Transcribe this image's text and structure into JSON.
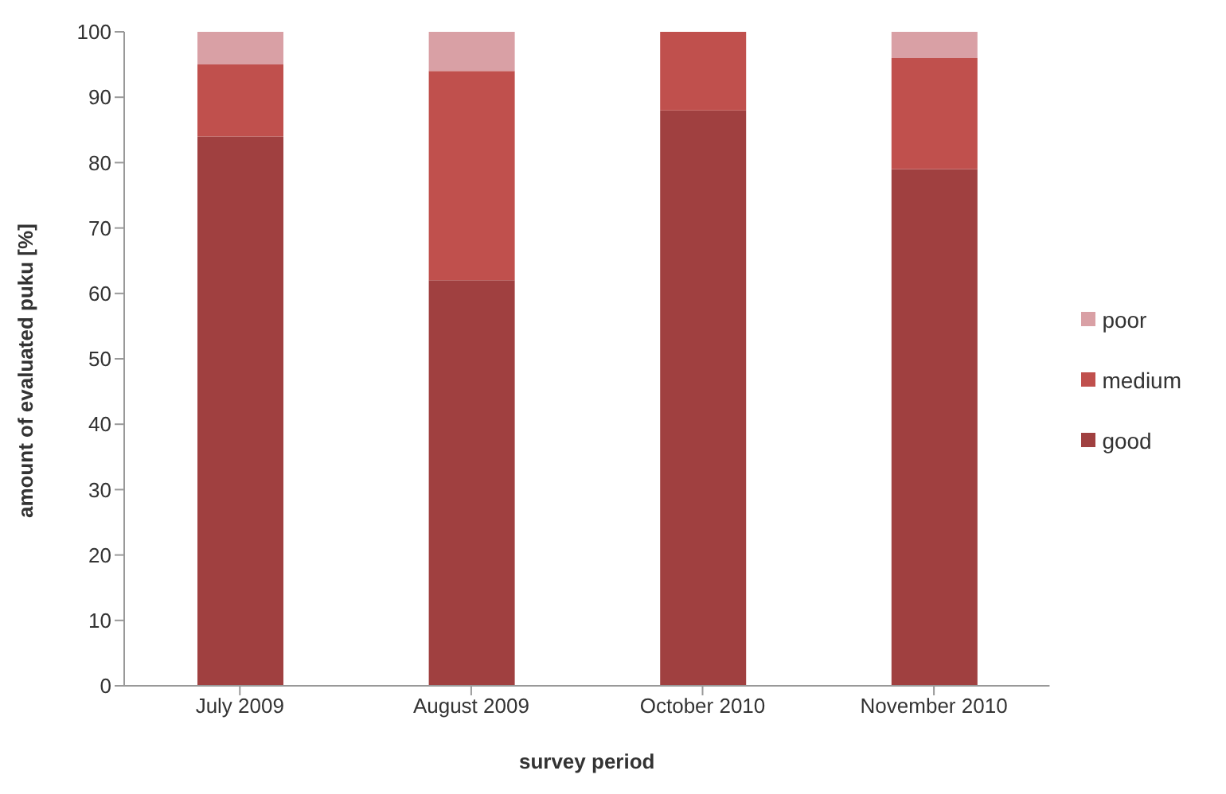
{
  "chart_data": {
    "type": "bar",
    "stacked": true,
    "xlabel": "survey period",
    "ylabel": "amount of evaluated puku [%]",
    "categories": [
      "July 2009",
      "August 2009",
      "October 2010",
      "November 2010"
    ],
    "series": [
      {
        "name": "good",
        "color": "#a04040",
        "values": [
          84,
          62,
          88,
          79
        ]
      },
      {
        "name": "medium",
        "color": "#c0504d",
        "values": [
          11,
          32,
          12,
          17
        ]
      },
      {
        "name": "poor",
        "color": "#d9a0a5",
        "values": [
          5,
          6,
          0,
          4
        ]
      }
    ],
    "ylim": [
      0,
      100
    ],
    "yticks": [
      0,
      10,
      20,
      30,
      40,
      50,
      60,
      70,
      80,
      90,
      100
    ],
    "grid": false,
    "legend": "right"
  }
}
